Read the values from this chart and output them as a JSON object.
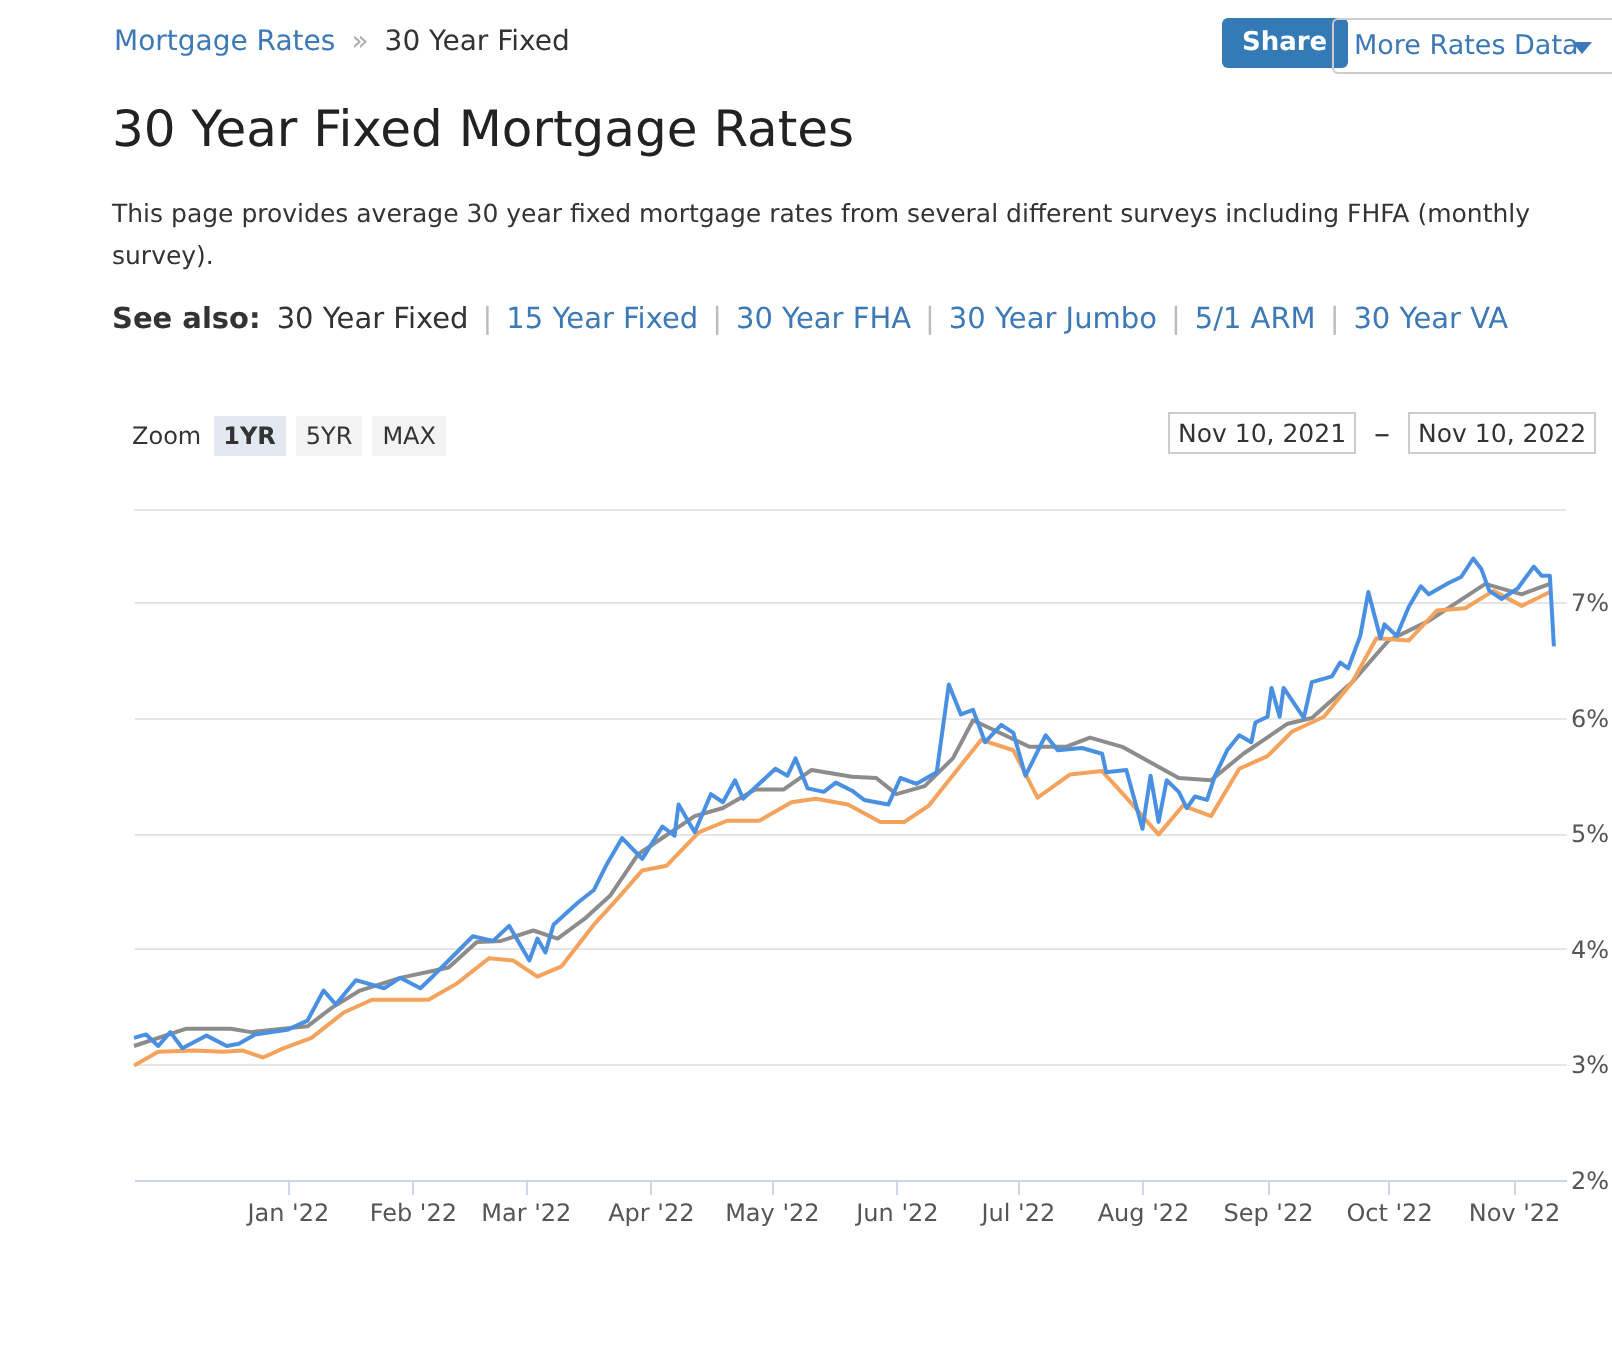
{
  "chart_data": {
    "type": "line",
    "title": "30 Year Fixed Mortgage Rates",
    "subtitle": "This page provides average 30 year fixed mortgage rates from several different surveys including FHFA (monthly survey).",
    "annotations": [
      "Mortgage Rates",
      "»",
      "30 Year Fixed",
      "Share",
      "More Rates Data",
      "See also:",
      "30 Year Fixed",
      "|",
      "15 Year Fixed",
      "|",
      "30 Year FHA",
      "|",
      "30 Year Jumbo",
      "|",
      "5/1 ARM",
      "|",
      "30 Year VA",
      "Zoom",
      "1YR",
      "5YR",
      "MAX",
      "Nov 10, 2021",
      "–",
      "Nov 10, 2022"
    ],
    "xlim": [
      "2021-11-24",
      "2022-11-14"
    ],
    "xticks": [
      {
        "value": "2022-01-01",
        "label": "Jan '22"
      },
      {
        "value": "2022-02-01",
        "label": "Feb '22"
      },
      {
        "value": "2022-03-01",
        "label": "Mar '22"
      },
      {
        "value": "2022-04-01",
        "label": "Apr '22"
      },
      {
        "value": "2022-05-01",
        "label": "May '22"
      },
      {
        "value": "2022-06-01",
        "label": "Jun '22"
      },
      {
        "value": "2022-07-01",
        "label": "Jul '22"
      },
      {
        "value": "2022-08-01",
        "label": "Aug '22"
      },
      {
        "value": "2022-09-01",
        "label": "Sep '22"
      },
      {
        "value": "2022-10-01",
        "label": "Oct '22"
      },
      {
        "value": "2022-11-01",
        "label": "Nov '22"
      }
    ],
    "ylim": [
      2,
      7.8
    ],
    "yticks": [
      {
        "value": 2,
        "label": "2%"
      },
      {
        "value": 3,
        "label": "3%"
      },
      {
        "value": 4,
        "label": "4%"
      },
      {
        "value": 5,
        "label": "5%"
      },
      {
        "value": 6,
        "label": "6%"
      },
      {
        "value": 7,
        "label": "7%"
      }
    ],
    "grid": "y",
    "series": [
      {
        "color": "#8c8c8c",
        "x": [
          "2021-11-24",
          "2021-12-07",
          "2021-12-18",
          "2021-12-23",
          "2022-01-06",
          "2022-01-12",
          "2022-01-19",
          "2022-01-29",
          "2022-02-10",
          "2022-02-17",
          "2022-02-23",
          "2022-03-03",
          "2022-03-09",
          "2022-03-16",
          "2022-03-22",
          "2022-03-29",
          "2022-04-12",
          "2022-04-19",
          "2022-04-27",
          "2022-05-04",
          "2022-05-11",
          "2022-05-21",
          "2022-05-27",
          "2022-06-01",
          "2022-06-08",
          "2022-06-15",
          "2022-06-20",
          "2022-07-04",
          "2022-07-13",
          "2022-07-19",
          "2022-07-27",
          "2022-08-10",
          "2022-08-18",
          "2022-08-26",
          "2022-09-06",
          "2022-09-12",
          "2022-09-22",
          "2022-10-01",
          "2022-10-11",
          "2022-10-25",
          "2022-11-03",
          "2022-11-10"
        ],
        "values": [
          3.16,
          3.31,
          3.31,
          3.28,
          3.33,
          3.49,
          3.64,
          3.75,
          3.84,
          4.06,
          4.07,
          4.16,
          4.09,
          4.27,
          4.46,
          4.82,
          5.15,
          5.22,
          5.38,
          5.38,
          5.55,
          5.49,
          5.48,
          5.34,
          5.41,
          5.65,
          5.98,
          5.75,
          5.75,
          5.83,
          5.75,
          5.48,
          5.46,
          5.69,
          5.95,
          6.0,
          6.31,
          6.67,
          6.84,
          7.16,
          7.07,
          7.16
        ]
      },
      {
        "color": "#f5a35c",
        "x": [
          "2021-11-24",
          "2021-11-30",
          "2021-12-09",
          "2021-12-16",
          "2021-12-21",
          "2021-12-26",
          "2021-12-31",
          "2022-01-07",
          "2022-01-15",
          "2022-01-22",
          "2022-02-05",
          "2022-02-12",
          "2022-02-20",
          "2022-02-26",
          "2022-03-04",
          "2022-03-10",
          "2022-03-18",
          "2022-03-24",
          "2022-03-30",
          "2022-04-05",
          "2022-04-13",
          "2022-04-20",
          "2022-04-28",
          "2022-05-06",
          "2022-05-12",
          "2022-05-20",
          "2022-05-28",
          "2022-06-03",
          "2022-06-09",
          "2022-06-22",
          "2022-06-30",
          "2022-07-06",
          "2022-07-14",
          "2022-07-22",
          "2022-07-28",
          "2022-08-05",
          "2022-08-11",
          "2022-08-18",
          "2022-08-25",
          "2022-09-01",
          "2022-09-07",
          "2022-09-15",
          "2022-09-22",
          "2022-09-28",
          "2022-10-06",
          "2022-10-13",
          "2022-10-20",
          "2022-10-27",
          "2022-11-03",
          "2022-11-10"
        ],
        "values": [
          2.99,
          3.11,
          3.12,
          3.11,
          3.12,
          3.06,
          3.14,
          3.23,
          3.45,
          3.56,
          3.56,
          3.7,
          3.92,
          3.9,
          3.76,
          3.85,
          4.21,
          4.44,
          4.68,
          4.72,
          5.01,
          5.11,
          5.11,
          5.27,
          5.3,
          5.25,
          5.1,
          5.1,
          5.24,
          5.81,
          5.72,
          5.31,
          5.51,
          5.54,
          5.31,
          4.99,
          5.24,
          5.15,
          5.56,
          5.67,
          5.88,
          6.01,
          6.31,
          6.69,
          6.67,
          6.93,
          6.95,
          7.1,
          6.97,
          7.09
        ]
      },
      {
        "color": "#4a90e2",
        "x": [
          "2021-11-24",
          "2021-11-27",
          "2021-11-30",
          "2021-12-03",
          "2021-12-06",
          "2021-12-12",
          "2021-12-17",
          "2021-12-20",
          "2021-12-24",
          "2022-01-01",
          "2022-01-06",
          "2022-01-10",
          "2022-01-13",
          "2022-01-18",
          "2022-01-25",
          "2022-01-29",
          "2022-02-03",
          "2022-02-06",
          "2022-02-10",
          "2022-02-16",
          "2022-02-21",
          "2022-02-25",
          "2022-03-02",
          "2022-03-04",
          "2022-03-06",
          "2022-03-08",
          "2022-03-14",
          "2022-03-18",
          "2022-03-21",
          "2022-03-25",
          "2022-03-30",
          "2022-04-04",
          "2022-04-07",
          "2022-04-08",
          "2022-04-12",
          "2022-04-16",
          "2022-04-19",
          "2022-04-22",
          "2022-04-24",
          "2022-05-02",
          "2022-05-05",
          "2022-05-07",
          "2022-05-10",
          "2022-05-14",
          "2022-05-17",
          "2022-05-21",
          "2022-05-24",
          "2022-05-30",
          "2022-06-02",
          "2022-06-06",
          "2022-06-11",
          "2022-06-14",
          "2022-06-17",
          "2022-06-20",
          "2022-06-23",
          "2022-06-27",
          "2022-06-30",
          "2022-07-03",
          "2022-07-08",
          "2022-07-11",
          "2022-07-17",
          "2022-07-22",
          "2022-07-23",
          "2022-07-28",
          "2022-08-01",
          "2022-08-03",
          "2022-08-05",
          "2022-08-07",
          "2022-08-10",
          "2022-08-12",
          "2022-08-14",
          "2022-08-17",
          "2022-08-19",
          "2022-08-22",
          "2022-08-25",
          "2022-08-28",
          "2022-08-29",
          "2022-09-01",
          "2022-09-02",
          "2022-09-04",
          "2022-09-05",
          "2022-09-10",
          "2022-09-12",
          "2022-09-17",
          "2022-09-19",
          "2022-09-21",
          "2022-09-24",
          "2022-09-26",
          "2022-09-29",
          "2022-09-30",
          "2022-10-03",
          "2022-10-06",
          "2022-10-09",
          "2022-10-11",
          "2022-10-16",
          "2022-10-19",
          "2022-10-22",
          "2022-10-24",
          "2022-10-26",
          "2022-10-29",
          "2022-11-02",
          "2022-11-06",
          "2022-11-08",
          "2022-11-10",
          "2022-11-11"
        ],
        "values": [
          3.23,
          3.26,
          3.16,
          3.28,
          3.14,
          3.25,
          3.16,
          3.18,
          3.26,
          3.3,
          3.38,
          3.64,
          3.52,
          3.73,
          3.66,
          3.75,
          3.66,
          3.76,
          3.9,
          4.11,
          4.07,
          4.2,
          3.9,
          4.09,
          3.97,
          4.21,
          4.4,
          4.51,
          4.72,
          4.96,
          4.78,
          5.06,
          4.98,
          5.25,
          5.01,
          5.34,
          5.27,
          5.46,
          5.3,
          5.56,
          5.5,
          5.65,
          5.39,
          5.36,
          5.44,
          5.37,
          5.29,
          5.25,
          5.48,
          5.43,
          5.53,
          6.29,
          6.03,
          6.07,
          5.79,
          5.94,
          5.87,
          5.5,
          5.85,
          5.72,
          5.74,
          5.69,
          5.53,
          5.55,
          5.04,
          5.5,
          5.1,
          5.46,
          5.36,
          5.22,
          5.32,
          5.29,
          5.5,
          5.72,
          5.85,
          5.79,
          5.96,
          6.01,
          6.26,
          6.01,
          6.26,
          6.0,
          6.31,
          6.36,
          6.48,
          6.43,
          6.71,
          7.09,
          6.69,
          6.81,
          6.71,
          6.96,
          7.14,
          7.07,
          7.17,
          7.22,
          7.38,
          7.29,
          7.1,
          7.03,
          7.12,
          7.31,
          7.23,
          7.23,
          6.62
        ]
      }
    ]
  }
}
